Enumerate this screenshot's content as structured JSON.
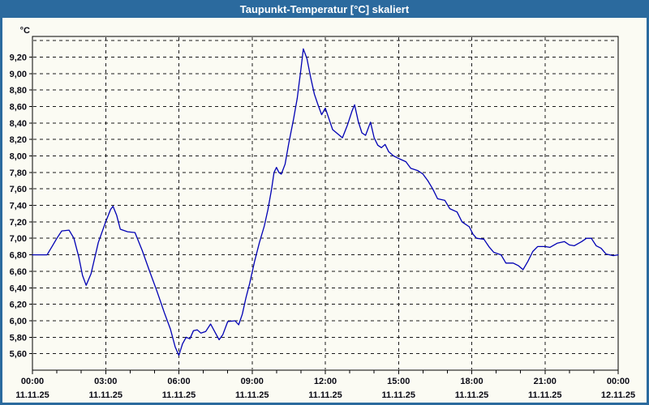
{
  "window": {
    "title": "Taupunkt-Temperatur [°C] skaliert",
    "title_bar_color": "#2B6A9E",
    "border_color": "#2B6A9E",
    "background_color": "#FBFBF3"
  },
  "chart_data": {
    "type": "line",
    "title": "Taupunkt-Temperatur [°C] skaliert",
    "unit_label": "°C",
    "line_color": "#0000B4",
    "grid": {
      "style": "dashed",
      "color": "#1A1A1A",
      "ygrid_top_unlabeled": 9.4
    },
    "ylim": [
      5.4,
      9.45
    ],
    "ytick_step": 0.2,
    "yticks": [
      {
        "v": 9.2,
        "label": "9,20"
      },
      {
        "v": 9.0,
        "label": "9,00"
      },
      {
        "v": 8.8,
        "label": "8,80"
      },
      {
        "v": 8.6,
        "label": "8,60"
      },
      {
        "v": 8.4,
        "label": "8,40"
      },
      {
        "v": 8.2,
        "label": "8,20"
      },
      {
        "v": 8.0,
        "label": "8,00"
      },
      {
        "v": 7.8,
        "label": "7,80"
      },
      {
        "v": 7.6,
        "label": "7,60"
      },
      {
        "v": 7.4,
        "label": "7,40"
      },
      {
        "v": 7.2,
        "label": "7,20"
      },
      {
        "v": 7.0,
        "label": "7,00"
      },
      {
        "v": 6.8,
        "label": "6,80"
      },
      {
        "v": 6.6,
        "label": "6,60"
      },
      {
        "v": 6.4,
        "label": "6,40"
      },
      {
        "v": 6.2,
        "label": "6,20"
      },
      {
        "v": 6.0,
        "label": "6,00"
      },
      {
        "v": 5.8,
        "label": "5,80"
      },
      {
        "v": 5.6,
        "label": "5,60"
      }
    ],
    "xlim_hours": [
      0,
      24
    ],
    "minor_xtick_every_hours": 1,
    "xticks": [
      {
        "hour": 0,
        "time": "00:00",
        "date": "11.11.25"
      },
      {
        "hour": 3,
        "time": "03:00",
        "date": "11.11.25"
      },
      {
        "hour": 6,
        "time": "06:00",
        "date": "11.11.25"
      },
      {
        "hour": 9,
        "time": "09:00",
        "date": "11.11.25"
      },
      {
        "hour": 12,
        "time": "12:00",
        "date": "11.11.25"
      },
      {
        "hour": 15,
        "time": "15:00",
        "date": "11.11.25"
      },
      {
        "hour": 18,
        "time": "18:00",
        "date": "11.11.25"
      },
      {
        "hour": 21,
        "time": "21:00",
        "date": "11.11.25"
      },
      {
        "hour": 24,
        "time": "00:00",
        "date": "12.11.25"
      }
    ],
    "series": [
      {
        "name": "Taupunkt-Temperatur",
        "points": [
          [
            0.0,
            6.8
          ],
          [
            0.3,
            6.8
          ],
          [
            0.6,
            6.8
          ],
          [
            0.8,
            6.9
          ],
          [
            1.0,
            7.0
          ],
          [
            1.2,
            7.09
          ],
          [
            1.5,
            7.1
          ],
          [
            1.7,
            7.0
          ],
          [
            1.9,
            6.77
          ],
          [
            2.05,
            6.55
          ],
          [
            2.2,
            6.43
          ],
          [
            2.4,
            6.57
          ],
          [
            2.7,
            6.95
          ],
          [
            3.0,
            7.2
          ],
          [
            3.2,
            7.35
          ],
          [
            3.3,
            7.39
          ],
          [
            3.45,
            7.28
          ],
          [
            3.6,
            7.11
          ],
          [
            3.9,
            7.08
          ],
          [
            4.2,
            7.07
          ],
          [
            4.5,
            6.85
          ],
          [
            4.8,
            6.6
          ],
          [
            5.1,
            6.36
          ],
          [
            5.4,
            6.1
          ],
          [
            5.65,
            5.9
          ],
          [
            5.85,
            5.68
          ],
          [
            6.0,
            5.58
          ],
          [
            6.15,
            5.72
          ],
          [
            6.3,
            5.8
          ],
          [
            6.45,
            5.78
          ],
          [
            6.6,
            5.88
          ],
          [
            6.75,
            5.89
          ],
          [
            6.9,
            5.85
          ],
          [
            7.1,
            5.87
          ],
          [
            7.3,
            5.96
          ],
          [
            7.5,
            5.85
          ],
          [
            7.65,
            5.77
          ],
          [
            7.8,
            5.83
          ],
          [
            8.0,
            5.99
          ],
          [
            8.3,
            6.0
          ],
          [
            8.45,
            5.95
          ],
          [
            8.6,
            6.08
          ],
          [
            8.75,
            6.28
          ],
          [
            8.9,
            6.45
          ],
          [
            9.1,
            6.72
          ],
          [
            9.3,
            6.95
          ],
          [
            9.5,
            7.15
          ],
          [
            9.65,
            7.35
          ],
          [
            9.8,
            7.6
          ],
          [
            9.9,
            7.8
          ],
          [
            10.0,
            7.86
          ],
          [
            10.1,
            7.8
          ],
          [
            10.2,
            7.78
          ],
          [
            10.35,
            7.9
          ],
          [
            10.5,
            8.15
          ],
          [
            10.7,
            8.45
          ],
          [
            10.85,
            8.7
          ],
          [
            11.0,
            9.05
          ],
          [
            11.1,
            9.3
          ],
          [
            11.25,
            9.18
          ],
          [
            11.4,
            8.95
          ],
          [
            11.55,
            8.75
          ],
          [
            11.7,
            8.62
          ],
          [
            11.85,
            8.5
          ],
          [
            12.0,
            8.58
          ],
          [
            12.15,
            8.45
          ],
          [
            12.3,
            8.32
          ],
          [
            12.5,
            8.27
          ],
          [
            12.7,
            8.22
          ],
          [
            12.9,
            8.37
          ],
          [
            13.1,
            8.55
          ],
          [
            13.2,
            8.62
          ],
          [
            13.35,
            8.42
          ],
          [
            13.5,
            8.28
          ],
          [
            13.65,
            8.25
          ],
          [
            13.85,
            8.41
          ],
          [
            14.0,
            8.22
          ],
          [
            14.15,
            8.13
          ],
          [
            14.3,
            8.1
          ],
          [
            14.45,
            8.14
          ],
          [
            14.6,
            8.05
          ],
          [
            14.8,
            8.0
          ],
          [
            15.0,
            7.97
          ],
          [
            15.3,
            7.93
          ],
          [
            15.5,
            7.85
          ],
          [
            15.8,
            7.82
          ],
          [
            16.0,
            7.78
          ],
          [
            16.2,
            7.7
          ],
          [
            16.4,
            7.6
          ],
          [
            16.6,
            7.48
          ],
          [
            16.9,
            7.46
          ],
          [
            17.1,
            7.36
          ],
          [
            17.4,
            7.32
          ],
          [
            17.6,
            7.2
          ],
          [
            17.9,
            7.14
          ],
          [
            18.05,
            7.05
          ],
          [
            18.2,
            7.0
          ],
          [
            18.5,
            6.99
          ],
          [
            18.7,
            6.9
          ],
          [
            18.9,
            6.83
          ],
          [
            19.2,
            6.8
          ],
          [
            19.4,
            6.7
          ],
          [
            19.7,
            6.7
          ],
          [
            19.9,
            6.67
          ],
          [
            20.1,
            6.62
          ],
          [
            20.3,
            6.72
          ],
          [
            20.5,
            6.84
          ],
          [
            20.7,
            6.9
          ],
          [
            21.0,
            6.9
          ],
          [
            21.2,
            6.89
          ],
          [
            21.5,
            6.94
          ],
          [
            21.8,
            6.96
          ],
          [
            22.0,
            6.92
          ],
          [
            22.2,
            6.91
          ],
          [
            22.5,
            6.96
          ],
          [
            22.7,
            7.0
          ],
          [
            22.9,
            7.0
          ],
          [
            23.1,
            6.91
          ],
          [
            23.3,
            6.88
          ],
          [
            23.5,
            6.81
          ],
          [
            23.8,
            6.79
          ],
          [
            24.0,
            6.8
          ]
        ]
      }
    ]
  }
}
